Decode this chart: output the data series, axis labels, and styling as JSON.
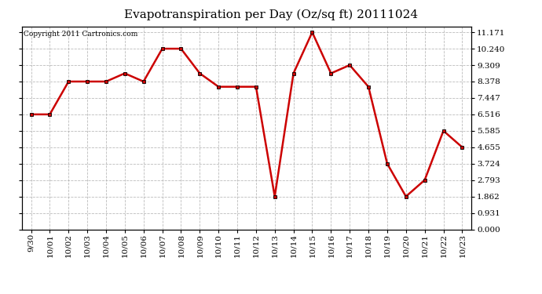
{
  "title": "Evapotranspiration per Day (Oz/sq ft) 20111024",
  "copyright": "Copyright 2011 Cartronics.com",
  "dates": [
    "9/30",
    "10/01",
    "10/02",
    "10/03",
    "10/04",
    "10/05",
    "10/06",
    "10/07",
    "10/08",
    "10/09",
    "10/10",
    "10/11",
    "10/12",
    "10/13",
    "10/14",
    "10/15",
    "10/16",
    "10/17",
    "10/18",
    "10/19",
    "10/20",
    "10/21",
    "10/22",
    "10/23"
  ],
  "values": [
    6.516,
    6.516,
    8.378,
    8.378,
    8.378,
    8.843,
    8.378,
    10.24,
    10.24,
    8.843,
    8.082,
    8.082,
    8.082,
    1.862,
    8.843,
    11.171,
    8.843,
    9.309,
    8.082,
    3.724,
    1.862,
    2.793,
    5.585,
    4.655
  ],
  "line_color": "#cc0000",
  "marker": "s",
  "marker_color": "#000000",
  "marker_size": 3,
  "background_color": "#ffffff",
  "plot_bg_color": "#ffffff",
  "grid_color": "#aaaaaa",
  "yticks": [
    0.0,
    0.931,
    1.862,
    2.793,
    3.724,
    4.655,
    5.585,
    6.516,
    7.447,
    8.378,
    9.309,
    10.24,
    11.171
  ],
  "ylim": [
    0.0,
    11.5
  ],
  "title_fontsize": 11,
  "copyright_fontsize": 6.5,
  "tick_fontsize": 7.5
}
